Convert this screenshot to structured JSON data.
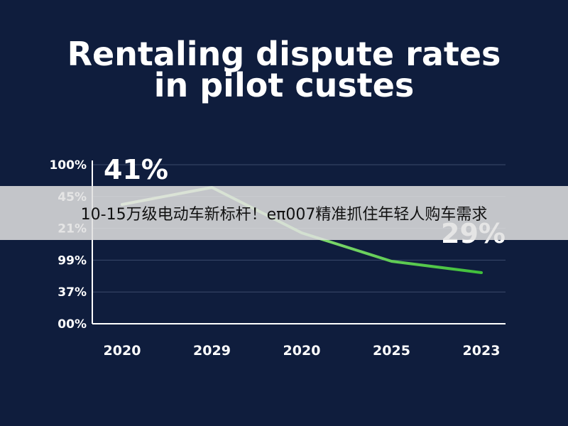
{
  "chart_data": {
    "type": "line",
    "title_lines": [
      "Rentaling dispute rates",
      "in pilot custes"
    ],
    "x_labels": [
      "2020",
      "2029",
      "2020",
      "2025",
      "2023"
    ],
    "y_labels": [
      "100%",
      "45%",
      "21%",
      "99%",
      "37%",
      "00%"
    ],
    "values": [
      41,
      44,
      36,
      31,
      29
    ],
    "annotations": [
      {
        "text": "41%",
        "index": 0
      },
      {
        "text": "29%",
        "index": 4
      }
    ],
    "grid": true,
    "colors": {
      "background": "#0f1d3d",
      "line_start": "#c8f5a8",
      "line_end": "#3fbf3a",
      "grid": "#3b4a6b"
    }
  },
  "banner": {
    "text": "10-15万级电动车新标杆！eπ007精准抓住年轻人购车需求"
  }
}
